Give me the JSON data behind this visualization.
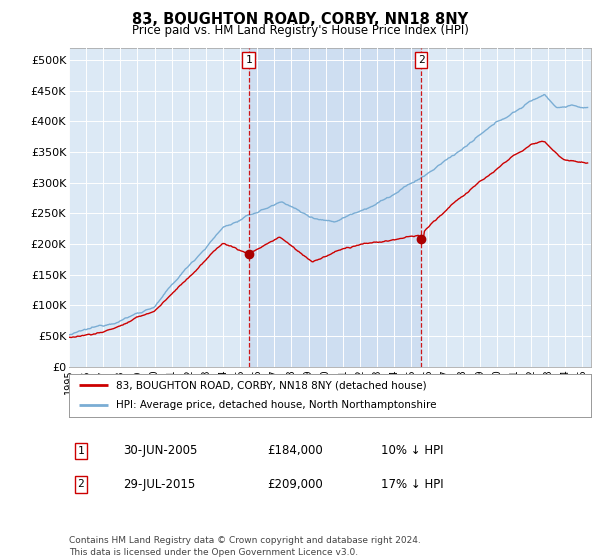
{
  "title": "83, BOUGHTON ROAD, CORBY, NN18 8NY",
  "subtitle": "Price paid vs. HM Land Registry's House Price Index (HPI)",
  "ylabel_ticks": [
    "£0",
    "£50K",
    "£100K",
    "£150K",
    "£200K",
    "£250K",
    "£300K",
    "£350K",
    "£400K",
    "£450K",
    "£500K"
  ],
  "ytick_values": [
    0,
    50000,
    100000,
    150000,
    200000,
    250000,
    300000,
    350000,
    400000,
    450000,
    500000
  ],
  "ylim": [
    0,
    520000
  ],
  "xlim_start": 1995.0,
  "xlim_end": 2025.5,
  "fig_bg_color": "#ffffff",
  "plot_bg_color": "#dce9f5",
  "shade_color": "#c5d8ef",
  "sale1_x": 2005.496,
  "sale1_y": 184000,
  "sale2_x": 2015.578,
  "sale2_y": 209000,
  "sale1_date": "30-JUN-2005",
  "sale1_price": "£184,000",
  "sale1_hpi": "10% ↓ HPI",
  "sale2_date": "29-JUL-2015",
  "sale2_price": "£209,000",
  "sale2_hpi": "17% ↓ HPI",
  "legend_line1": "83, BOUGHTON ROAD, CORBY, NN18 8NY (detached house)",
  "legend_line2": "HPI: Average price, detached house, North Northamptonshire",
  "footnote": "Contains HM Land Registry data © Crown copyright and database right 2024.\nThis data is licensed under the Open Government Licence v3.0.",
  "red_line_color": "#cc0000",
  "blue_line_color": "#7aadd4",
  "dashed_line_color": "#cc0000",
  "marker_color": "#aa0000"
}
